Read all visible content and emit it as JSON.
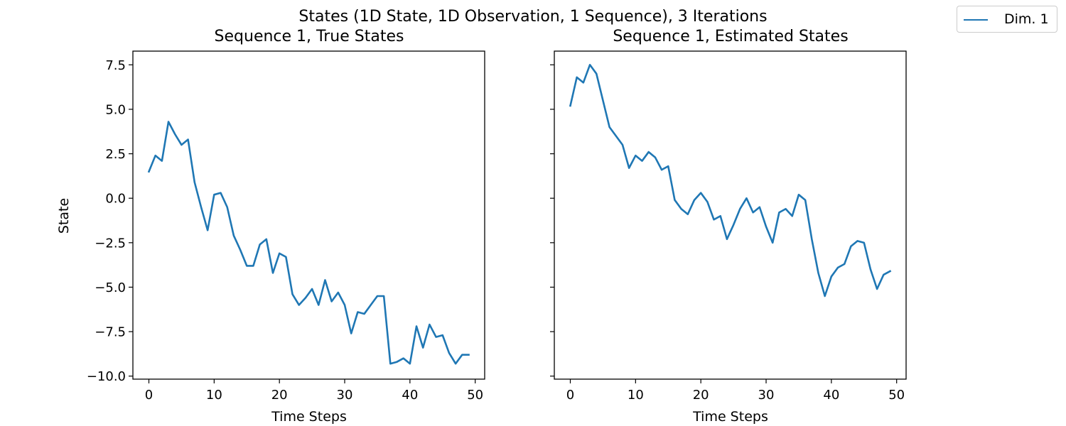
{
  "figure": {
    "suptitle": "States (1D State, 1D Observation, 1 Sequence), 3 Iterations",
    "legend": {
      "entries": [
        "Dim. 1"
      ],
      "placement": "top-right outside"
    },
    "colors": {
      "series": "#1f77b4",
      "axes": "#000000",
      "background": "#ffffff"
    }
  },
  "chart_data": [
    {
      "type": "line",
      "title": "Sequence 1, True States",
      "xlabel": "Time Steps",
      "ylabel": "State",
      "xlim": [
        -2.45,
        51.45
      ],
      "ylim": [
        -10.17,
        8.27
      ],
      "xticks": [
        0,
        10,
        20,
        30,
        40,
        50
      ],
      "yticks": [
        7.5,
        5.0,
        2.5,
        0.0,
        -2.5,
        -5.0,
        -7.5,
        -10.0
      ],
      "ytick_labels": [
        "7.5",
        "5.0",
        "2.5",
        "0.0",
        "−2.5",
        "−5.0",
        "−7.5",
        "−10.0"
      ],
      "grid": false,
      "series": [
        {
          "name": "Dim. 1",
          "x": [
            0,
            1,
            2,
            3,
            4,
            5,
            6,
            7,
            8,
            9,
            10,
            11,
            12,
            13,
            14,
            15,
            16,
            17,
            18,
            19,
            20,
            21,
            22,
            23,
            24,
            25,
            26,
            27,
            28,
            29,
            30,
            31,
            32,
            33,
            34,
            35,
            36,
            37,
            38,
            39,
            40,
            41,
            42,
            43,
            44,
            45,
            46,
            47,
            48,
            49
          ],
          "values": [
            1.5,
            2.4,
            2.1,
            4.3,
            3.6,
            3.0,
            3.3,
            0.9,
            -0.5,
            -1.8,
            0.2,
            0.3,
            -0.5,
            -2.1,
            -2.9,
            -3.8,
            -3.8,
            -2.6,
            -2.3,
            -4.2,
            -3.1,
            -3.3,
            -5.4,
            -6.0,
            -5.6,
            -5.1,
            -6.0,
            -4.6,
            -5.8,
            -5.3,
            -6.0,
            -7.6,
            -6.4,
            -6.5,
            -6.0,
            -5.5,
            -5.5,
            -9.3,
            -9.2,
            -9.0,
            -9.3,
            -7.2,
            -8.4,
            -7.1,
            -7.8,
            -7.7,
            -8.7,
            -9.3,
            -8.8,
            -8.8
          ]
        }
      ]
    },
    {
      "type": "line",
      "title": "Sequence 1, Estimated States",
      "xlabel": "Time Steps",
      "ylabel": "",
      "xlim": [
        -2.45,
        51.45
      ],
      "ylim": [
        -10.17,
        8.27
      ],
      "xticks": [
        0,
        10,
        20,
        30,
        40,
        50
      ],
      "yticks": [
        7.5,
        5.0,
        2.5,
        0.0,
        -2.5,
        -5.0,
        -7.5,
        -10.0
      ],
      "ytick_labels": [],
      "grid": false,
      "series": [
        {
          "name": "Dim. 1",
          "x": [
            0,
            1,
            2,
            3,
            4,
            5,
            6,
            7,
            8,
            9,
            10,
            11,
            12,
            13,
            14,
            15,
            16,
            17,
            18,
            19,
            20,
            21,
            22,
            23,
            24,
            25,
            26,
            27,
            28,
            29,
            30,
            31,
            32,
            33,
            34,
            35,
            36,
            37,
            38,
            39,
            40,
            41,
            42,
            43,
            44,
            45,
            46,
            47,
            48,
            49
          ],
          "values": [
            5.2,
            6.8,
            6.5,
            7.5,
            7.0,
            5.5,
            4.0,
            3.5,
            3.0,
            1.7,
            2.4,
            2.1,
            2.6,
            2.3,
            1.6,
            1.8,
            -0.1,
            -0.6,
            -0.9,
            -0.1,
            0.3,
            -0.2,
            -1.2,
            -1.0,
            -2.3,
            -1.5,
            -0.6,
            0.0,
            -0.8,
            -0.5,
            -1.6,
            -2.5,
            -0.8,
            -0.6,
            -1.0,
            0.2,
            -0.1,
            -2.3,
            -4.2,
            -5.5,
            -4.4,
            -3.9,
            -3.7,
            -2.7,
            -2.4,
            -2.5,
            -4.0,
            -5.1,
            -4.3,
            -4.1
          ]
        }
      ]
    }
  ]
}
